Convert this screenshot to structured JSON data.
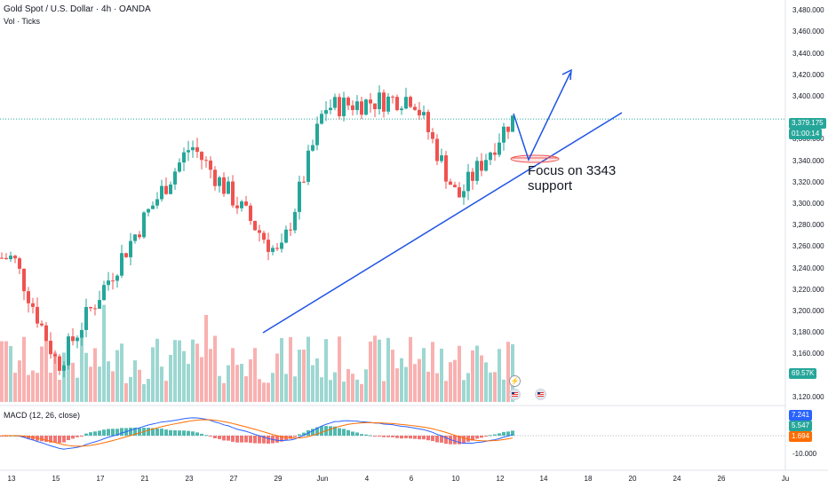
{
  "header": {
    "title": "Gold Spot / U.S. Dollar · 4h · OANDA",
    "volume_label": "Vol · Ticks",
    "macd_label": "MACD (12, 26, close)"
  },
  "price_axis": {
    "ticks": [
      "3,480.000",
      "3,460.000",
      "3,440.000",
      "3,420.000",
      "3,400.000",
      "3,360.000",
      "3,340.000",
      "3,320.000",
      "3,300.000",
      "3,280.000",
      "3,260.000",
      "3,240.000",
      "3,220.000",
      "3,200.000",
      "3,180.000",
      "3,160.000",
      "3,120.000"
    ],
    "min": 3110,
    "max": 3490
  },
  "date_axis": {
    "ticks": [
      "13",
      "15",
      "17",
      "21",
      "23",
      "27",
      "29",
      "Jun",
      "4",
      "6",
      "10",
      "12",
      "14",
      "18",
      "20",
      "24",
      "26",
      "Ju"
    ]
  },
  "tags": {
    "last_price": "3,379.175",
    "countdown": "01:00:14",
    "volume": "69.57K",
    "macd_value": "7.241",
    "signal_value": "5.547",
    "histogram_value": "1.694",
    "macd_tick": "-10.000"
  },
  "annotation": {
    "line1": "Focus on 3343",
    "line2": "support"
  },
  "colors": {
    "up": "#26a69a",
    "down": "#ef5350",
    "drawing": "#1e53e5",
    "macd": "#2962ff",
    "signal": "#ff6d00"
  },
  "chart_data": {
    "type": "candlestick",
    "symbol": "XAUUSD",
    "timeframe": "4h",
    "ylim": [
      3110,
      3490
    ],
    "last_price": 3379.175,
    "support_level": 3343,
    "approx_key_points": [
      {
        "date": "13",
        "price": 3250
      },
      {
        "date": "15",
        "price": 3150
      },
      {
        "date": "21",
        "price": 3290
      },
      {
        "date": "23",
        "price": 3355
      },
      {
        "date": "29",
        "price": 3250
      },
      {
        "date": "Jun",
        "price": 3390
      },
      {
        "date": "6",
        "price": 3400
      },
      {
        "date": "10",
        "price": 3305
      },
      {
        "date": "12",
        "price": 3379
      }
    ],
    "macd": {
      "macd": 7.241,
      "signal": 5.547,
      "histogram": 1.694
    }
  }
}
